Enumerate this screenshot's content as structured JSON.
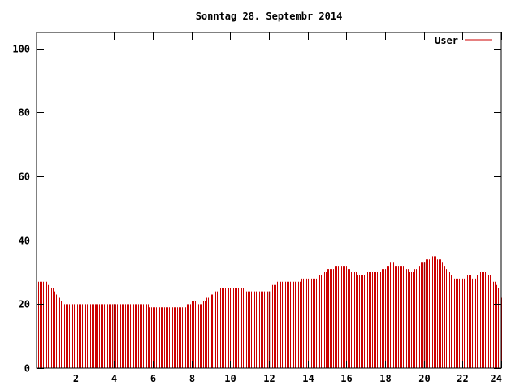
{
  "chart_data": {
    "type": "bar",
    "title": "Sonntag 28. Septembr 2014",
    "xlabel": "",
    "ylabel": "",
    "xlim": [
      0,
      24
    ],
    "ylim": [
      0,
      105
    ],
    "x_ticks": [
      "2",
      "4",
      "6",
      "8",
      "10",
      "12",
      "14",
      "16",
      "18",
      "20",
      "22",
      "24"
    ],
    "y_ticks": [
      "0",
      "20",
      "40",
      "60",
      "80",
      "100"
    ],
    "grid": false,
    "legend": "top-right",
    "series_color": "#cc0000",
    "series": [
      {
        "name": "User",
        "anchors": [
          [
            0.0,
            26.5
          ],
          [
            0.5,
            26.5
          ],
          [
            0.8,
            25
          ],
          [
            1.1,
            22
          ],
          [
            1.4,
            20
          ],
          [
            3.9,
            20
          ],
          [
            4.0,
            20
          ],
          [
            4.6,
            20
          ],
          [
            5.7,
            20
          ],
          [
            5.8,
            19
          ],
          [
            7.6,
            19
          ],
          [
            7.8,
            20
          ],
          [
            8.1,
            21
          ],
          [
            8.5,
            20
          ],
          [
            8.8,
            22
          ],
          [
            9.2,
            24
          ],
          [
            9.5,
            25
          ],
          [
            10.0,
            25
          ],
          [
            10.6,
            25
          ],
          [
            11.0,
            24
          ],
          [
            12.0,
            24
          ],
          [
            12.2,
            26
          ],
          [
            12.5,
            27
          ],
          [
            13.5,
            27
          ],
          [
            13.7,
            28
          ],
          [
            14.5,
            28
          ],
          [
            14.8,
            30
          ],
          [
            15.2,
            31
          ],
          [
            15.6,
            32
          ],
          [
            16.0,
            32
          ],
          [
            16.3,
            30
          ],
          [
            16.8,
            29
          ],
          [
            17.2,
            30
          ],
          [
            17.6,
            30
          ],
          [
            18.0,
            31
          ],
          [
            18.3,
            33
          ],
          [
            18.6,
            32
          ],
          [
            19.0,
            32
          ],
          [
            19.3,
            30
          ],
          [
            19.6,
            31
          ],
          [
            19.9,
            33
          ],
          [
            20.2,
            34
          ],
          [
            20.5,
            35
          ],
          [
            20.8,
            34
          ],
          [
            21.1,
            32
          ],
          [
            21.4,
            29
          ],
          [
            21.7,
            28
          ],
          [
            22.0,
            28
          ],
          [
            22.3,
            29
          ],
          [
            22.6,
            28
          ],
          [
            22.9,
            29.5
          ],
          [
            23.2,
            30
          ],
          [
            23.5,
            28
          ],
          [
            23.8,
            26
          ],
          [
            24.0,
            22
          ]
        ]
      }
    ]
  }
}
